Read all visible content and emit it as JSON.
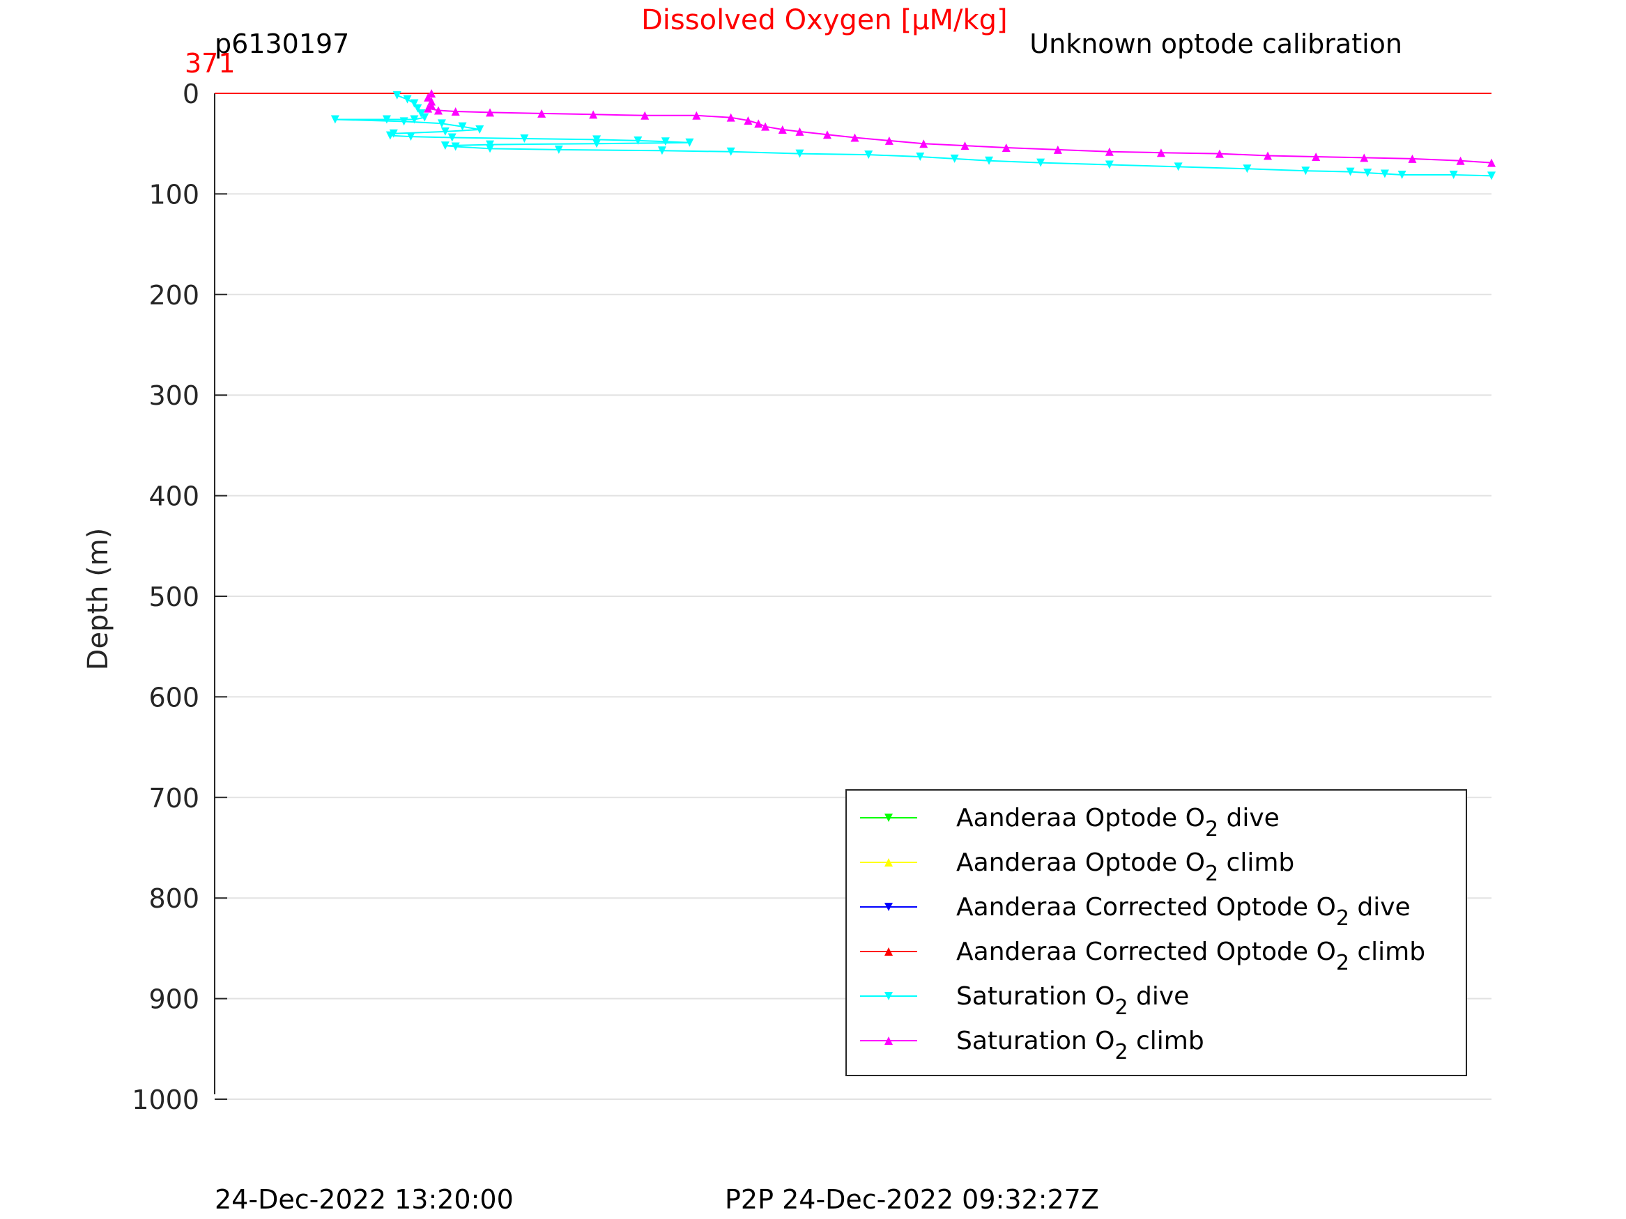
{
  "chart_data": {
    "type": "line",
    "title": "Dissolved Oxygen [μM/kg]",
    "title_color": "#ff0000",
    "subtitle_left": "p6130197",
    "subtitle_right": "Unknown optode calibration",
    "x_max_label": "371",
    "x_max_label_color": "#ff0000",
    "ylabel": "Depth (m)",
    "yticks": [
      "0",
      "100",
      "200",
      "300",
      "400",
      "500",
      "600",
      "700",
      "800",
      "900",
      "1000"
    ],
    "ylim": [
      0,
      1000
    ],
    "xlim": [
      0,
      371
    ],
    "y_reversed": true,
    "grid": true,
    "legend_position": "bottom-right",
    "footer_left": "24-Dec-2022 13:20:00",
    "footer_right": "P2P 24-Dec-2022 09:32:27Z",
    "reference_line": {
      "depth": 0,
      "color": "#ff0000"
    },
    "series": [
      {
        "name": "Aanderaa Optode O2 dive",
        "color": "#00ff00",
        "marker": "down",
        "x": [],
        "y": []
      },
      {
        "name": "Aanderaa Optode O2 climb",
        "color": "#ffff00",
        "marker": "up",
        "x": [],
        "y": []
      },
      {
        "name": "Aanderaa Corrected Optode O2 dive",
        "color": "#0000ff",
        "marker": "down",
        "x": [],
        "y": []
      },
      {
        "name": "Aanderaa Corrected Optode O2 climb",
        "color": "#ff0000",
        "marker": "up",
        "x": [],
        "y": []
      },
      {
        "name": "Saturation O2 dive",
        "color": "#00ffff",
        "marker": "down",
        "x": [
          53,
          56,
          58,
          59,
          60,
          61,
          58,
          50,
          35,
          55,
          66,
          72,
          77,
          67,
          52,
          51,
          57,
          69,
          90,
          111,
          123,
          131,
          138,
          111,
          80,
          67,
          70,
          80,
          100,
          130,
          150,
          170,
          190,
          205,
          215,
          225,
          240,
          260,
          280,
          300,
          317,
          330,
          335,
          340,
          345,
          360,
          371
        ],
        "y": [
          2,
          6,
          10,
          15,
          20,
          24,
          26,
          26,
          26,
          28,
          30,
          33,
          36,
          38,
          40,
          42,
          43,
          44,
          45,
          46,
          47,
          48,
          49,
          50,
          51,
          52,
          53,
          55,
          56,
          57,
          58,
          60,
          61,
          63,
          65,
          67,
          69,
          71,
          73,
          75,
          77,
          78,
          79,
          80,
          81,
          81,
          82
        ]
      },
      {
        "name": "Saturation O2 climb",
        "color": "#ff00ff",
        "marker": "up",
        "x": [
          63,
          62,
          63,
          63,
          62,
          65,
          70,
          80,
          95,
          110,
          125,
          140,
          150,
          155,
          158,
          160,
          165,
          170,
          178,
          186,
          196,
          206,
          218,
          230,
          245,
          260,
          275,
          292,
          306,
          320,
          334,
          348,
          362,
          371
        ],
        "y": [
          0,
          4,
          8,
          12,
          15,
          17,
          18,
          19,
          20,
          21,
          22,
          22,
          24,
          27,
          30,
          33,
          36,
          38,
          41,
          44,
          47,
          50,
          52,
          54,
          56,
          58,
          59,
          60,
          62,
          63,
          64,
          65,
          67,
          69
        ]
      }
    ]
  }
}
